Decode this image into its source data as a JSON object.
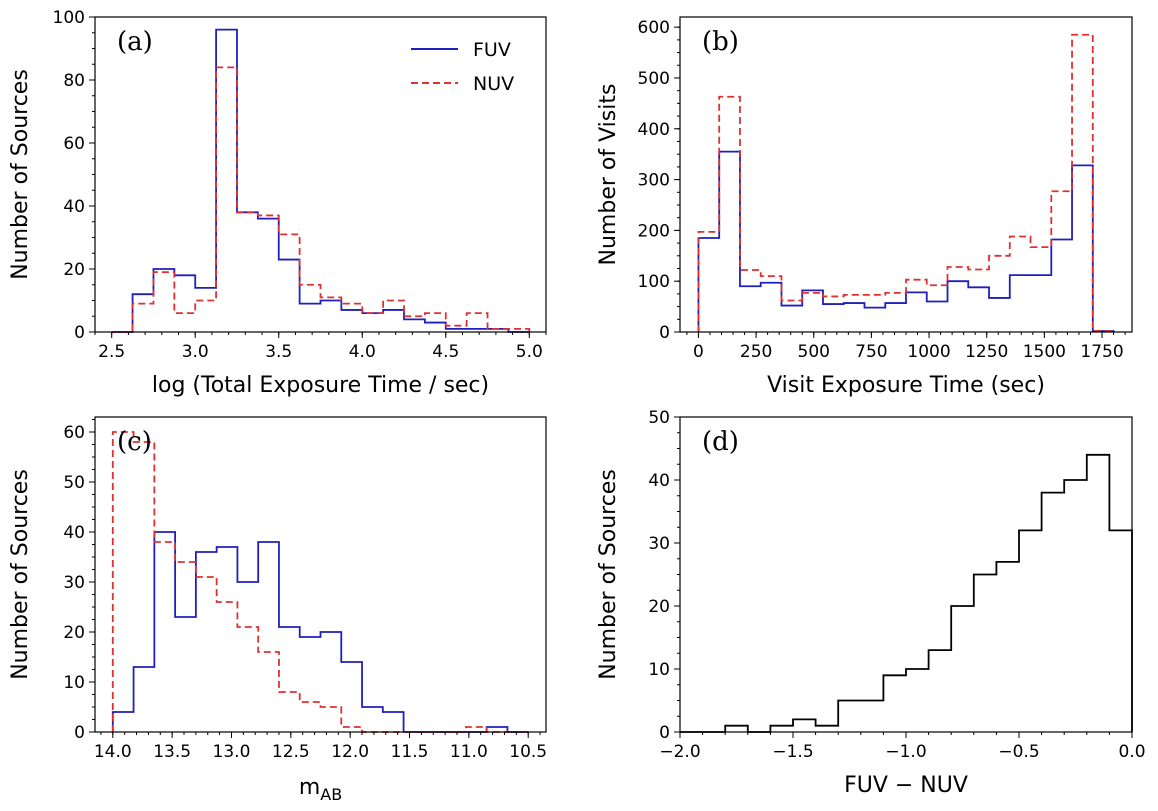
{
  "colors": {
    "fuv": "#1f1fbf",
    "nuv": "#e03030",
    "black": "#000000"
  },
  "chart_data": [
    {
      "id": "a",
      "type": "histogram",
      "panel_label": "(a)",
      "xlabel": "log (Total Exposure Time / sec)",
      "ylabel": "Number of Sources",
      "xlim": [
        2.4,
        5.1
      ],
      "ylim": [
        0,
        100
      ],
      "xticks": [
        2.5,
        3.0,
        3.5,
        4.0,
        4.5,
        5.0
      ],
      "xtick_labels": [
        "2.5",
        "3.0",
        "3.5",
        "4.0",
        "4.5",
        "5.0"
      ],
      "yticks": [
        0,
        20,
        40,
        60,
        80,
        100
      ],
      "ytick_labels": [
        "0",
        "20",
        "40",
        "60",
        "80",
        "100"
      ],
      "legend": {
        "position": "top-right",
        "entries": [
          {
            "name": "FUV",
            "style": "solid",
            "color": "#1f1fbf"
          },
          {
            "name": "NUV",
            "style": "dashed",
            "color": "#e03030"
          }
        ]
      },
      "series": [
        {
          "name": "FUV",
          "style": "solid",
          "color": "#1f1fbf",
          "edges": [
            2.5,
            2.625,
            2.75,
            2.875,
            3.0,
            3.125,
            3.25,
            3.375,
            3.5,
            3.625,
            3.75,
            3.875,
            4.0,
            4.125,
            4.25,
            4.375,
            4.5,
            4.625,
            4.75,
            4.875,
            5.0
          ],
          "values": [
            0,
            12,
            20,
            18,
            14,
            96,
            38,
            36,
            23,
            9,
            10,
            7,
            6,
            7,
            4,
            3,
            1,
            1,
            1,
            0
          ]
        },
        {
          "name": "NUV",
          "style": "dashed",
          "color": "#e03030",
          "edges": [
            2.5,
            2.625,
            2.75,
            2.875,
            3.0,
            3.125,
            3.25,
            3.375,
            3.5,
            3.625,
            3.75,
            3.875,
            4.0,
            4.125,
            4.25,
            4.375,
            4.5,
            4.625,
            4.75,
            4.875,
            5.0
          ],
          "values": [
            0,
            9,
            19,
            6,
            10,
            84,
            38,
            37,
            31,
            15,
            11,
            9,
            6,
            10,
            5,
            6,
            2,
            6,
            1,
            1
          ]
        }
      ]
    },
    {
      "id": "b",
      "type": "histogram",
      "panel_label": "(b)",
      "xlabel": "Visit Exposure Time (sec)",
      "ylabel": "Number of Visits",
      "xlim": [
        -80,
        1880
      ],
      "ylim": [
        0,
        620
      ],
      "xticks": [
        0,
        250,
        500,
        750,
        1000,
        1250,
        1500,
        1750
      ],
      "xtick_labels": [
        "0",
        "250",
        "500",
        "750",
        "1000",
        "1250",
        "1500",
        "1750"
      ],
      "yticks": [
        0,
        100,
        200,
        300,
        400,
        500,
        600
      ],
      "ytick_labels": [
        "0",
        "100",
        "200",
        "300",
        "400",
        "500",
        "600"
      ],
      "series": [
        {
          "name": "FUV",
          "style": "solid",
          "color": "#1f1fbf",
          "edges": [
            0,
            90,
            180,
            270,
            360,
            450,
            540,
            630,
            720,
            810,
            900,
            990,
            1080,
            1170,
            1260,
            1350,
            1440,
            1530,
            1620,
            1710,
            1800
          ],
          "values": [
            185,
            355,
            90,
            97,
            52,
            82,
            55,
            57,
            48,
            57,
            78,
            60,
            100,
            88,
            67,
            112,
            112,
            182,
            328,
            2
          ]
        },
        {
          "name": "NUV",
          "style": "dashed",
          "color": "#e03030",
          "edges": [
            0,
            90,
            180,
            270,
            360,
            450,
            540,
            630,
            720,
            810,
            900,
            990,
            1080,
            1170,
            1260,
            1350,
            1440,
            1530,
            1620,
            1710,
            1800
          ],
          "values": [
            197,
            463,
            122,
            110,
            62,
            77,
            70,
            73,
            73,
            77,
            103,
            92,
            128,
            123,
            150,
            188,
            167,
            277,
            585,
            2
          ]
        }
      ]
    },
    {
      "id": "c",
      "type": "histogram",
      "panel_label": "(c)",
      "xlabel": "m_AB",
      "xlabel_main": "m",
      "xlabel_sub": "AB",
      "ylabel": "Number of Sources",
      "xlim": [
        14.15,
        10.35
      ],
      "ylim": [
        0,
        63
      ],
      "xticks": [
        14.0,
        13.5,
        13.0,
        12.5,
        12.0,
        11.5,
        11.0,
        10.5
      ],
      "xtick_labels": [
        "14.0",
        "13.5",
        "13.0",
        "12.5",
        "12.0",
        "11.5",
        "11.0",
        "10.5"
      ],
      "yticks": [
        0,
        10,
        20,
        30,
        40,
        50,
        60
      ],
      "ytick_labels": [
        "0",
        "10",
        "20",
        "30",
        "40",
        "50",
        "60"
      ],
      "series": [
        {
          "name": "FUV",
          "style": "solid",
          "color": "#1f1fbf",
          "edges": [
            14.0,
            13.825,
            13.65,
            13.475,
            13.3,
            13.125,
            12.95,
            12.775,
            12.6,
            12.425,
            12.25,
            12.075,
            11.9,
            11.725,
            11.55,
            11.375,
            11.2,
            11.025,
            10.85,
            10.675,
            10.5
          ],
          "values": [
            4,
            13,
            40,
            23,
            36,
            37,
            30,
            38,
            21,
            19,
            20,
            14,
            5,
            4,
            0,
            0,
            0,
            0,
            1,
            0
          ]
        },
        {
          "name": "NUV",
          "style": "dashed",
          "color": "#e03030",
          "edges": [
            14.0,
            13.825,
            13.65,
            13.475,
            13.3,
            13.125,
            12.95,
            12.775,
            12.6,
            12.425,
            12.25,
            12.075,
            11.9,
            11.725,
            11.55,
            11.375,
            11.2,
            11.025,
            10.85,
            10.675,
            10.5
          ],
          "values": [
            60,
            58,
            38,
            34,
            31,
            26,
            21,
            16,
            8,
            6,
            5,
            1,
            0,
            0,
            0,
            0,
            0,
            1,
            0,
            0
          ]
        }
      ]
    },
    {
      "id": "d",
      "type": "histogram",
      "panel_label": "(d)",
      "xlabel": "FUV − NUV",
      "ylabel": "Number of Sources",
      "xlim": [
        -2.0,
        0.0
      ],
      "ylim": [
        0,
        50
      ],
      "xticks": [
        -2.0,
        -1.5,
        -1.0,
        -0.5,
        0.0
      ],
      "xtick_labels": [
        "−2.0",
        "−1.5",
        "−1.0",
        "−0.5",
        "0.0"
      ],
      "yticks": [
        0,
        10,
        20,
        30,
        40,
        50
      ],
      "ytick_labels": [
        "0",
        "10",
        "20",
        "30",
        "40",
        "50"
      ],
      "series": [
        {
          "name": "FUV-NUV",
          "style": "solid",
          "color": "#000000",
          "edges": [
            -2.0,
            -1.9,
            -1.8,
            -1.7,
            -1.6,
            -1.5,
            -1.4,
            -1.3,
            -1.2,
            -1.1,
            -1.0,
            -0.9,
            -0.8,
            -0.7,
            -0.6,
            -0.5,
            -0.4,
            -0.3,
            -0.2,
            -0.1,
            0.0
          ],
          "values": [
            0,
            0,
            1,
            0,
            1,
            2,
            1,
            5,
            5,
            9,
            10,
            13,
            20,
            25,
            27,
            32,
            38,
            40,
            44,
            32
          ]
        }
      ]
    }
  ]
}
